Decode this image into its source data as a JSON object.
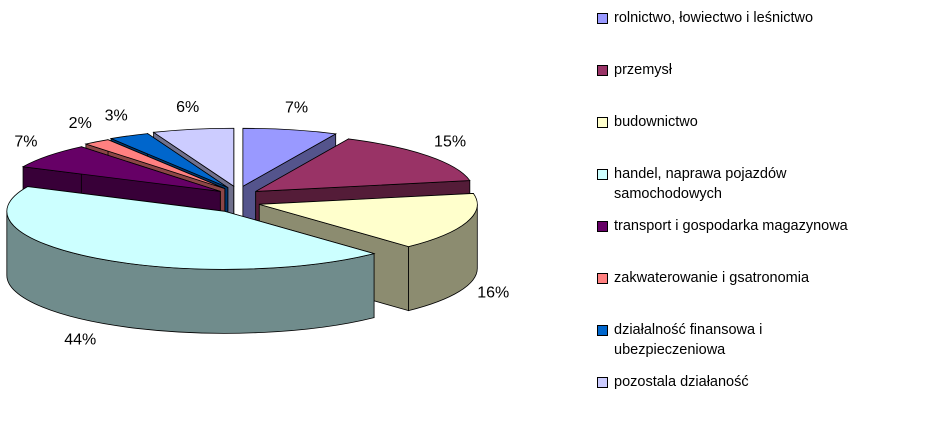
{
  "chart_data": {
    "type": "pie3d",
    "categories": [
      "rolnictwo, łowiectwo i leśnictwo",
      "przemysł",
      "budownictwo",
      "handel, naprawa pojazdów samochodowych",
      "transport i gospodarka magazynowa",
      "zakwaterowanie i gsatronomia",
      "działalność finansowa i ubezpieczeniowa",
      "pozostala działaność"
    ],
    "values": [
      7,
      15,
      16,
      44,
      7,
      2,
      3,
      6
    ],
    "value_labels": [
      "7%",
      "15%",
      "16%",
      "44%",
      "7%",
      "2%",
      "3%",
      "6%"
    ],
    "colors": [
      "#9999ff",
      "#993366",
      "#ffffcc",
      "#ccffff",
      "#660066",
      "#ff8080",
      "#0066cc",
      "#ccccff"
    ],
    "legend": "right"
  }
}
